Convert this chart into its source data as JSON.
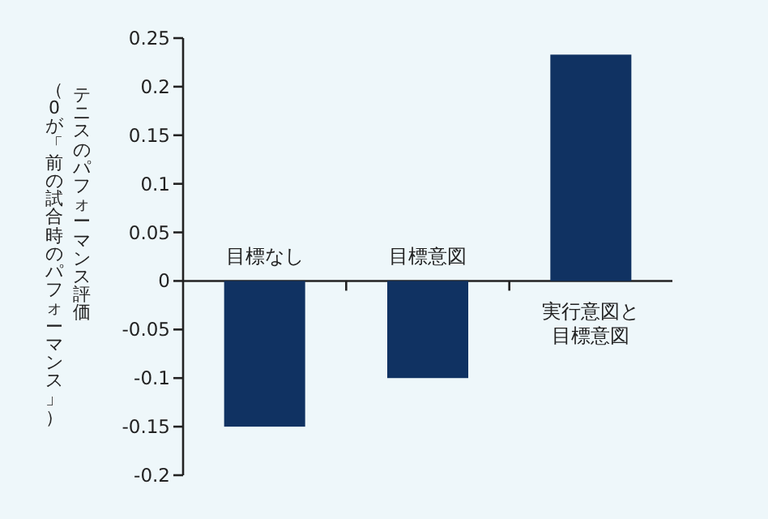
{
  "chart_data": {
    "type": "bar",
    "ylabel": "テニスのパフォーマンス評価",
    "annotations": [
      "（0が「前の試合時のパフォーマンス」）"
    ],
    "categories": [
      "目標なし",
      "目標意図",
      "実行意図と目標意図"
    ],
    "values": [
      -0.15,
      -0.1,
      0.233
    ],
    "color": "#103262",
    "ylim": [
      -0.2,
      0.25
    ],
    "yticks": [
      -0.2,
      -0.15,
      -0.1,
      -0.05,
      0,
      0.05,
      0.1,
      0.15,
      0.2,
      0.25
    ],
    "grid": false
  }
}
